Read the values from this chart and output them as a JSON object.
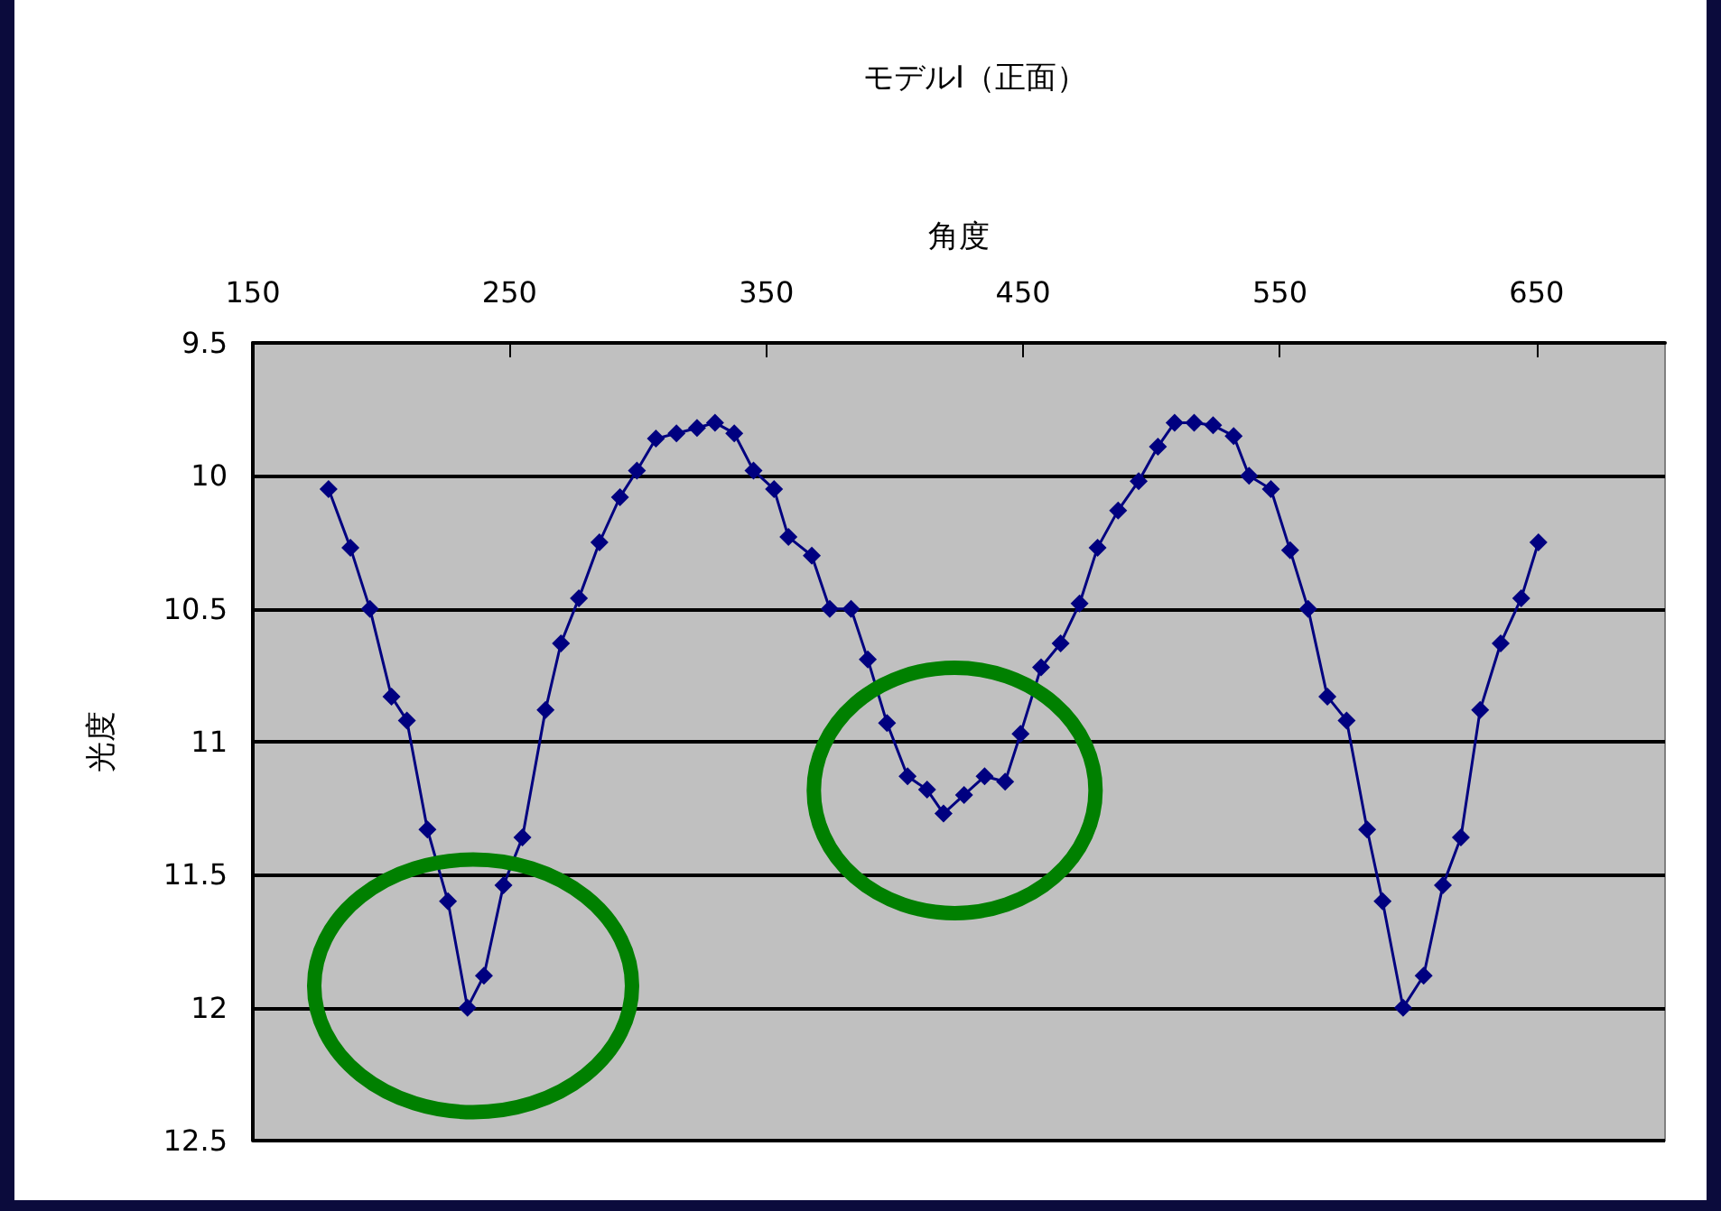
{
  "chart_data": {
    "type": "line",
    "title": "モデルI（正面）",
    "xlabel": "角度",
    "ylabel": "光度",
    "x": [
      179.5,
      188,
      195.6,
      204,
      210,
      218,
      226,
      233.6,
      240,
      247.6,
      255,
      264,
      270,
      277,
      285,
      293,
      299.6,
      307,
      315,
      323,
      330,
      337.5,
      345,
      353,
      358.6,
      367.7,
      374.7,
      383,
      389.5,
      397,
      405,
      412.6,
      419,
      427,
      435,
      443,
      449,
      457,
      464.6,
      472,
      479,
      487,
      495,
      502.5,
      509,
      516.6,
      524,
      532,
      538,
      546.5,
      554,
      561,
      568.5,
      576,
      584,
      590,
      598,
      606,
      613.5,
      620.5,
      628,
      636,
      644,
      650.7
    ],
    "series": [
      {
        "color": "#000080",
        "values": [
          10.05,
          10.27,
          10.5,
          10.83,
          10.92,
          11.33,
          11.6,
          12.0,
          11.88,
          11.54,
          11.36,
          10.88,
          10.63,
          10.46,
          10.25,
          10.08,
          9.98,
          9.86,
          9.84,
          9.82,
          9.8,
          9.84,
          9.98,
          10.05,
          10.23,
          10.3,
          10.5,
          10.5,
          10.69,
          10.93,
          11.13,
          11.18,
          11.27,
          11.2,
          11.13,
          11.15,
          10.97,
          10.72,
          10.63,
          10.48,
          10.27,
          10.13,
          10.02,
          9.89,
          9.8,
          9.8,
          9.81,
          9.85,
          10.0,
          10.05,
          10.28,
          10.5,
          10.83,
          10.92,
          11.33,
          11.6,
          12.0,
          11.88,
          11.54,
          11.36,
          10.88,
          10.63,
          10.46,
          10.25
        ]
      }
    ],
    "xlim": [
      150,
      700
    ],
    "xticks": [
      150,
      250,
      350,
      450,
      550,
      650
    ],
    "ylim": [
      12.5,
      9.5
    ],
    "yticks": [
      9.5,
      10,
      10.5,
      11,
      11.5,
      12,
      12.5
    ],
    "grid": "y",
    "marker": "diamond",
    "line_style": "solid"
  }
}
